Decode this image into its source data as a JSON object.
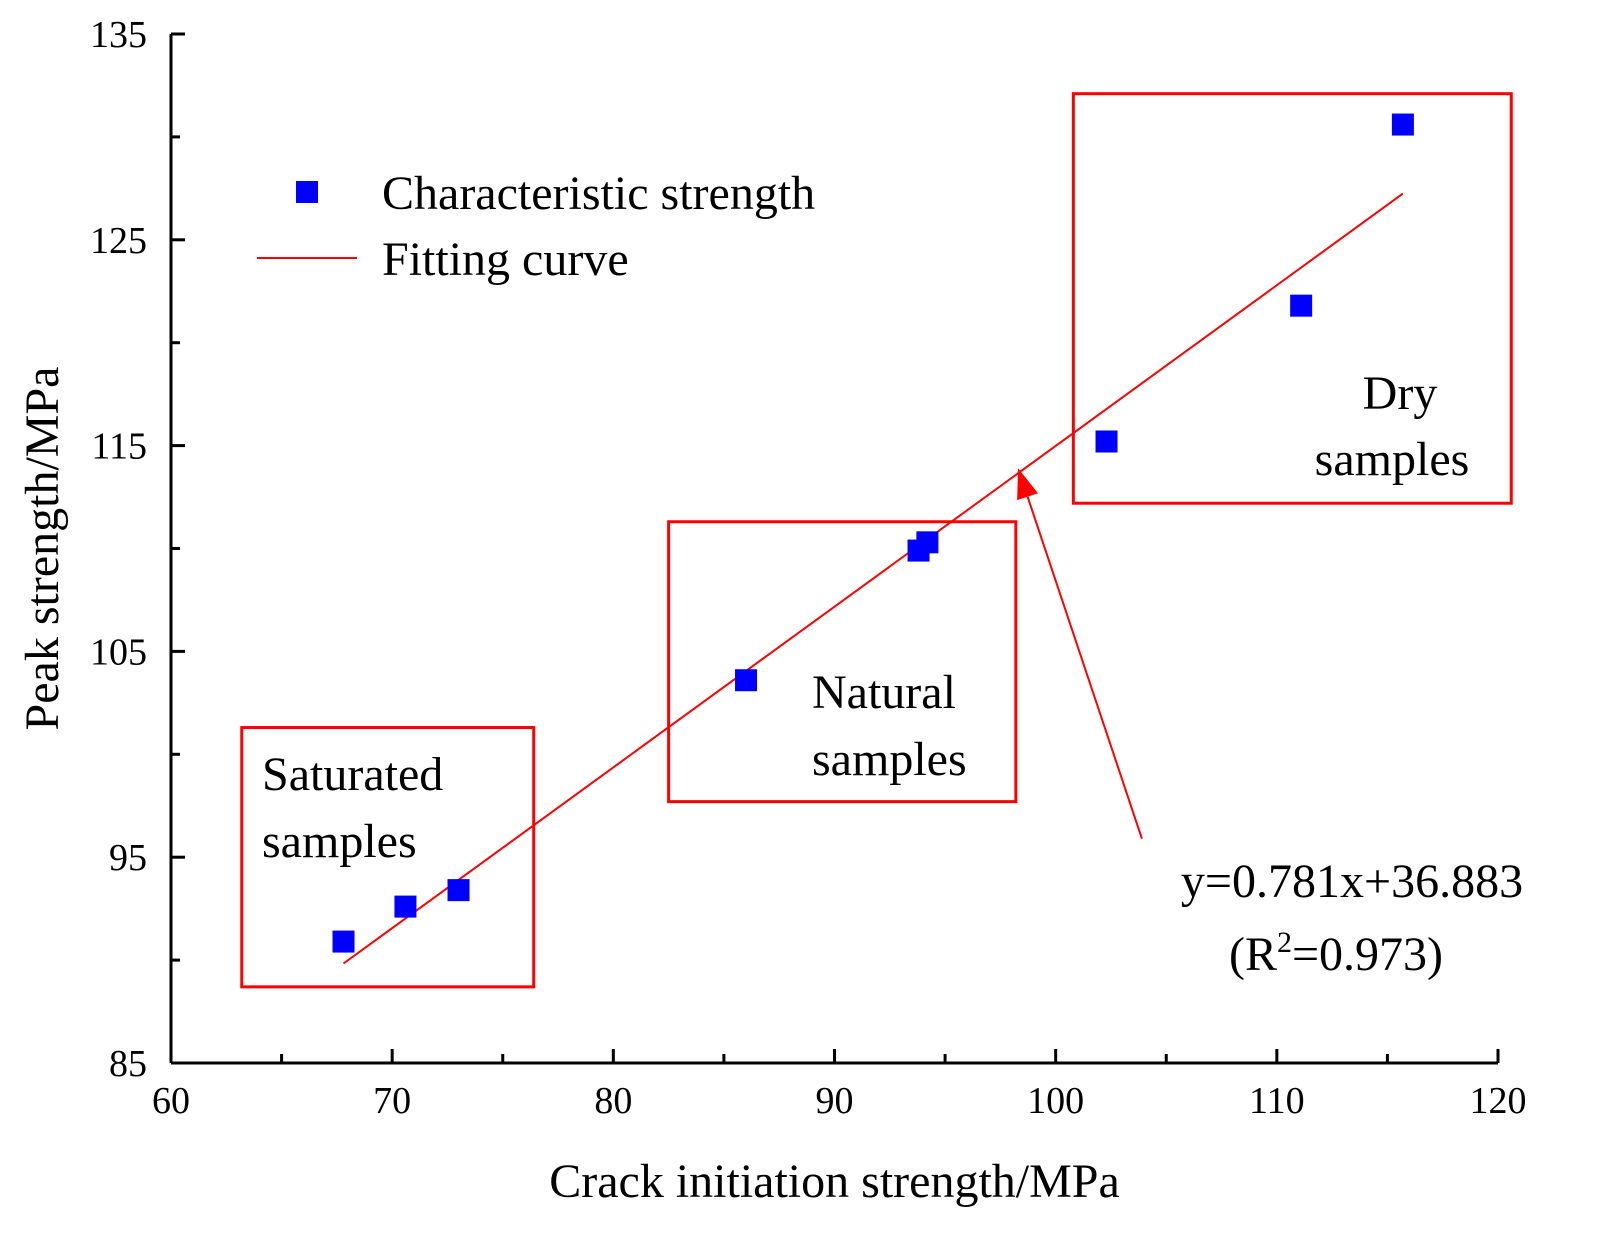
{
  "chart_data": {
    "type": "scatter",
    "xlabel": "Crack initiation strength/MPa",
    "ylabel": "Peak strength/MPa",
    "xlim": [
      60,
      120
    ],
    "ylim": [
      85,
      135
    ],
    "x_ticks": [
      60,
      70,
      80,
      90,
      100,
      110,
      120
    ],
    "y_ticks": [
      85,
      95,
      105,
      115,
      125,
      135
    ],
    "x_minor_step": 5,
    "y_minor_step": 5,
    "grid": false,
    "colors": {
      "points": "#0000ff",
      "fit": "#ff0000",
      "boxes": "#ff0000",
      "arrow": "#ff0000",
      "axis": "#000000"
    },
    "series": [
      {
        "name": "Characteristic strength",
        "kind": "scatter",
        "marker": "square",
        "points": [
          {
            "x": 67.8,
            "y": 90.9
          },
          {
            "x": 70.6,
            "y": 92.6
          },
          {
            "x": 73.0,
            "y": 93.4
          },
          {
            "x": 86.0,
            "y": 103.6
          },
          {
            "x": 93.8,
            "y": 109.9
          },
          {
            "x": 94.2,
            "y": 110.3
          },
          {
            "x": 102.3,
            "y": 115.2
          },
          {
            "x": 111.1,
            "y": 121.8
          },
          {
            "x": 115.7,
            "y": 130.6
          }
        ]
      },
      {
        "name": "Fitting curve",
        "kind": "line",
        "x_range": [
          67.8,
          115.7
        ],
        "slope": 0.781,
        "intercept": 36.883
      }
    ],
    "legend": {
      "placement": "top-left"
    },
    "groups": [
      {
        "line1": "Saturated",
        "line2": "samples",
        "xrange": [
          63.2,
          76.4
        ],
        "yrange": [
          88.7,
          101.3
        ]
      },
      {
        "line1": "Natural",
        "line2": "samples",
        "xrange": [
          82.5,
          98.2
        ],
        "yrange": [
          97.7,
          111.3
        ]
      },
      {
        "line1": "Dry",
        "line2": "samples",
        "xrange": [
          100.8,
          120.6
        ],
        "yrange": [
          112.2,
          132.1
        ]
      }
    ],
    "annotation": {
      "equation": "y=0.781x+36.883",
      "r2_prefix": "(R",
      "r2_sup": "2",
      "r2_suffix": "=0.973)",
      "arrow_from": {
        "x": 103.9,
        "y": 95.9
      },
      "arrow_to": {
        "x": 98.3,
        "y": 113.9
      }
    }
  }
}
